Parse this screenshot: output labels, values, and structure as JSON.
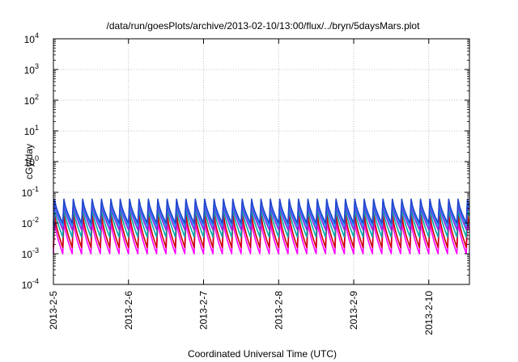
{
  "chart_data": {
    "type": "line",
    "title": "/data/run/goesPlots/archive/2013-02-10/13:00/flux/../bryn/5daysMars.plot",
    "xlabel": "Coordinated Universal Time (UTC)",
    "ylabel": "cGy/day",
    "xlim": [
      "2013-02-05",
      "2013-02-10 13:00"
    ],
    "ylim": [
      0.0001,
      10000
    ],
    "y_scale": "log",
    "grid": true,
    "legend": "none",
    "x_ticks": [
      "2013-2-5",
      "2013-2-6",
      "2013-2-7",
      "2013-2-8",
      "2013-2-9",
      "2013-2-10"
    ],
    "y_ticks": [
      {
        "base": "10",
        "exp": "4"
      },
      {
        "base": "10",
        "exp": "3"
      },
      {
        "base": "10",
        "exp": "2"
      },
      {
        "base": "10",
        "exp": "1"
      },
      {
        "base": "10",
        "exp": "0"
      },
      {
        "base": "10",
        "exp": "-1"
      },
      {
        "base": "10",
        "exp": "-2"
      },
      {
        "base": "10",
        "exp": "-3"
      },
      {
        "base": "10",
        "exp": "-4"
      }
    ],
    "periods_per_day": 8,
    "series": [
      {
        "color": "#ff00ff",
        "peak": 0.012,
        "trough": 0.001
      },
      {
        "color": "#cc0000",
        "peak": 0.02,
        "trough": 0.0016
      },
      {
        "color": "#00aaaa",
        "peak": 0.032,
        "trough": 0.0035
      },
      {
        "color": "#8a2be2",
        "peak": 0.045,
        "trough": 0.006
      },
      {
        "color": "#1e90ff",
        "peak": 0.055,
        "trough": 0.008
      },
      {
        "color": "#2244cc",
        "peak": 0.06,
        "trough": 0.01
      }
    ]
  }
}
